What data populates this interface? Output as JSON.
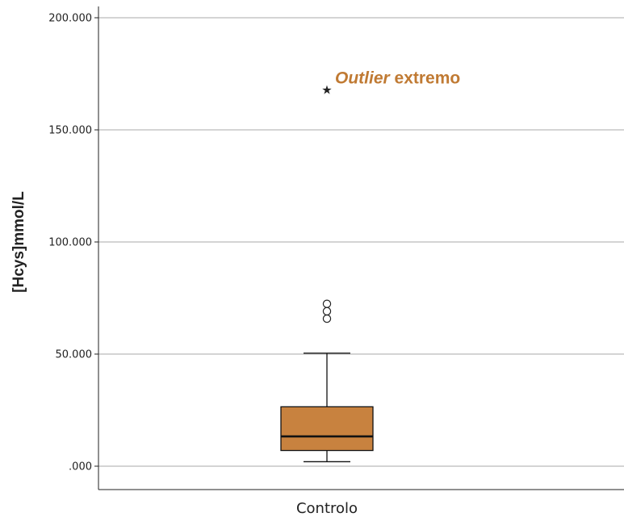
{
  "chart_data": {
    "type": "boxplot",
    "ylabel": "[Hcys]mmol/L",
    "categories": [
      "Controlo"
    ],
    "ylim": [
      0,
      200
    ],
    "yticks": [
      0,
      50,
      100,
      150,
      200
    ],
    "ytick_labels": [
      ".000",
      "50.000",
      "100.000",
      "150.000",
      "200.000"
    ],
    "grid": "horizontal",
    "box": {
      "category": "Controlo",
      "whisker_low": 2,
      "q1": 7,
      "median": 13.3,
      "q3": 26.5,
      "whisker_high": 50.4,
      "outliers": [
        65.8,
        69.1,
        72.4
      ],
      "extreme_outliers": [
        168.5
      ],
      "color": "#c8823f"
    },
    "annotation": {
      "italic_text": "Outlier",
      "text": " extremo",
      "color": "#c07a33"
    }
  }
}
